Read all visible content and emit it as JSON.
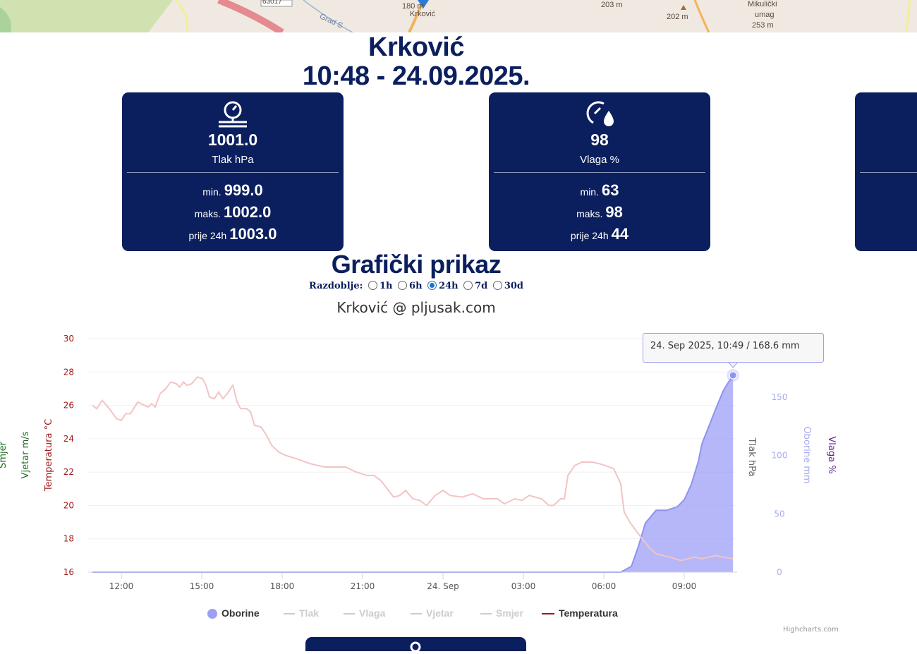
{
  "map": {
    "labels": [
      "63017",
      "180 m",
      "Krković",
      "Grad S",
      "203 m",
      "202 m",
      "Mikulički",
      "umag",
      "253 m"
    ]
  },
  "header": {
    "station": "Krković",
    "datetime": "10:48 - 24.09.2025."
  },
  "cards": [
    {
      "icon": "barometer-icon",
      "value": "1001.0",
      "unit": "Tlak hPa",
      "min_label": "min.",
      "min": "999.0",
      "max_label": "maks.",
      "max": "1002.0",
      "prev_label": "prije 24h",
      "prev": "1003.0"
    },
    {
      "icon": "humidity-gauge-icon",
      "value": "98",
      "unit": "Vlaga %",
      "min_label": "min.",
      "min": "63",
      "max_label": "maks.",
      "max": "98",
      "prev_label": "prije 24h",
      "prev": "44"
    }
  ],
  "graph": {
    "heading": "Grafički prikaz",
    "period_label": "Razdoblje:",
    "periods": [
      "1h",
      "6h",
      "24h",
      "7d",
      "30d"
    ],
    "selected_period": "24h"
  },
  "chart_data": {
    "type": "line",
    "title": "Krković @ pljusak.com",
    "x_unit": "hours since 23 Sep 2025 00:00",
    "xlim": [
      10.9,
      35.1
    ],
    "x_ticks": [
      {
        "v": 12,
        "label": "12:00"
      },
      {
        "v": 15,
        "label": "15:00"
      },
      {
        "v": 18,
        "label": "18:00"
      },
      {
        "v": 21,
        "label": "21:00"
      },
      {
        "v": 24,
        "label": "24. Sep"
      },
      {
        "v": 27,
        "label": "03:00"
      },
      {
        "v": 30,
        "label": "06:00"
      },
      {
        "v": 33,
        "label": "09:00"
      }
    ],
    "axes": {
      "temperature": {
        "title": "Temperatura °C",
        "ticks": [
          "16",
          "18",
          "20",
          "22",
          "24",
          "26",
          "28",
          "30"
        ],
        "range": [
          16,
          30
        ],
        "color": "#a01818"
      },
      "wind": {
        "title": "Vjetar m/s",
        "color": "#1f6b1f"
      },
      "direction": {
        "title": "Smjer",
        "color": "#1f6b1f"
      },
      "pressure": {
        "title": "Tlak hPa",
        "color": "#666666"
      },
      "rain": {
        "title": "Oborine mm",
        "ticks": [
          "0",
          "50",
          "100",
          "150"
        ],
        "range": [
          0,
          200
        ],
        "color": "#a8aaf0"
      },
      "humidity": {
        "title": "Vlaga %",
        "color": "#5b1f9a"
      }
    },
    "legend": [
      {
        "name": "Oborine",
        "active": true,
        "color": "#9c9ff5"
      },
      {
        "name": "Tlak",
        "active": false
      },
      {
        "name": "Vlaga",
        "active": false
      },
      {
        "name": "Vjetar",
        "active": false
      },
      {
        "name": "Smjer",
        "active": false
      },
      {
        "name": "Temperatura",
        "active": true,
        "color": "#a01818"
      }
    ],
    "series": [
      {
        "name": "Temperatura",
        "axis": "temperature",
        "color": "#f2c4c4",
        "points": [
          [
            10.92,
            26.0
          ],
          [
            11.08,
            25.8
          ],
          [
            11.29,
            26.3
          ],
          [
            11.55,
            25.8
          ],
          [
            11.82,
            25.2
          ],
          [
            12.0,
            25.1
          ],
          [
            12.16,
            25.5
          ],
          [
            12.34,
            25.5
          ],
          [
            12.61,
            26.2
          ],
          [
            12.87,
            26.0
          ],
          [
            13.0,
            25.9
          ],
          [
            13.13,
            26.1
          ],
          [
            13.26,
            25.9
          ],
          [
            13.45,
            26.7
          ],
          [
            13.66,
            27.0
          ],
          [
            13.84,
            27.4
          ],
          [
            14.05,
            27.3
          ],
          [
            14.18,
            27.1
          ],
          [
            14.32,
            27.4
          ],
          [
            14.45,
            27.2
          ],
          [
            14.63,
            27.3
          ],
          [
            14.84,
            27.7
          ],
          [
            15.03,
            27.6
          ],
          [
            15.16,
            27.2
          ],
          [
            15.29,
            26.5
          ],
          [
            15.47,
            26.4
          ],
          [
            15.63,
            26.8
          ],
          [
            15.79,
            26.4
          ],
          [
            15.95,
            26.7
          ],
          [
            16.16,
            27.2
          ],
          [
            16.32,
            26.2
          ],
          [
            16.45,
            25.8
          ],
          [
            16.68,
            25.8
          ],
          [
            16.82,
            25.6
          ],
          [
            16.97,
            24.8
          ],
          [
            17.21,
            24.7
          ],
          [
            17.42,
            24.2
          ],
          [
            17.61,
            23.6
          ],
          [
            17.87,
            23.2
          ],
          [
            18.13,
            23.0
          ],
          [
            18.53,
            22.8
          ],
          [
            19.05,
            22.5
          ],
          [
            19.58,
            22.3
          ],
          [
            19.97,
            22.3
          ],
          [
            20.37,
            22.3
          ],
          [
            20.76,
            22.0
          ],
          [
            21.16,
            21.8
          ],
          [
            21.42,
            21.8
          ],
          [
            21.68,
            21.5
          ],
          [
            22.16,
            20.5
          ],
          [
            22.39,
            20.6
          ],
          [
            22.61,
            20.9
          ],
          [
            22.87,
            20.4
          ],
          [
            23.13,
            20.3
          ],
          [
            23.39,
            20.0
          ],
          [
            23.71,
            20.6
          ],
          [
            24.0,
            20.9
          ],
          [
            24.26,
            20.6
          ],
          [
            24.71,
            20.5
          ],
          [
            25.11,
            20.7
          ],
          [
            25.5,
            20.4
          ],
          [
            26.03,
            20.4
          ],
          [
            26.29,
            20.1
          ],
          [
            26.68,
            20.4
          ],
          [
            26.95,
            20.3
          ],
          [
            27.21,
            20.6
          ],
          [
            27.68,
            20.4
          ],
          [
            27.95,
            20.0
          ],
          [
            28.13,
            20.0
          ],
          [
            28.39,
            20.4
          ],
          [
            28.53,
            20.4
          ],
          [
            28.66,
            21.8
          ],
          [
            28.92,
            22.4
          ],
          [
            29.18,
            22.6
          ],
          [
            29.58,
            22.6
          ],
          [
            29.84,
            22.5
          ],
          [
            30.05,
            22.4
          ],
          [
            30.37,
            22.2
          ],
          [
            30.63,
            21.3
          ],
          [
            30.76,
            19.6
          ],
          [
            30.97,
            19.0
          ],
          [
            31.29,
            18.3
          ],
          [
            31.68,
            17.5
          ],
          [
            31.95,
            17.1
          ],
          [
            32.21,
            17.0
          ],
          [
            32.47,
            16.9
          ],
          [
            32.87,
            16.7
          ],
          [
            33.13,
            16.8
          ],
          [
            33.39,
            16.9
          ],
          [
            33.66,
            16.8
          ],
          [
            33.92,
            16.9
          ],
          [
            34.18,
            17.0
          ],
          [
            34.45,
            16.9
          ],
          [
            34.82,
            16.8
          ]
        ]
      },
      {
        "name": "Oborine",
        "axis": "rain",
        "color": "#9c9ff5",
        "points": [
          [
            10.92,
            0
          ],
          [
            30.63,
            0
          ],
          [
            31.03,
            5
          ],
          [
            31.29,
            22
          ],
          [
            31.55,
            42
          ],
          [
            31.95,
            53
          ],
          [
            32.34,
            53
          ],
          [
            32.74,
            56
          ],
          [
            33.0,
            62
          ],
          [
            33.26,
            75
          ],
          [
            33.53,
            95
          ],
          [
            33.66,
            110
          ],
          [
            33.92,
            125
          ],
          [
            34.18,
            140
          ],
          [
            34.45,
            155
          ],
          [
            34.63,
            162
          ],
          [
            34.82,
            168.6
          ]
        ]
      }
    ],
    "tooltip": "24. Sep 2025, 10:49 / 168.6 mm",
    "credit": "Highcharts.com"
  }
}
